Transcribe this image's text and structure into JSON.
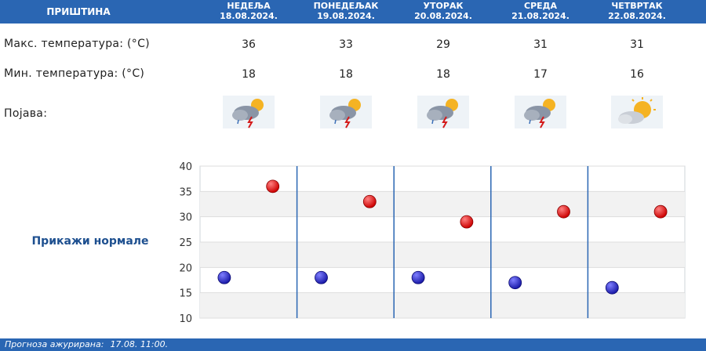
{
  "header": {
    "city": "ПРИШТИНА",
    "days": [
      {
        "name": "НЕДЕЉА",
        "date": "18.08.2024."
      },
      {
        "name": "ПОНЕДЕЉАК",
        "date": "19.08.2024."
      },
      {
        "name": "УТОРАК",
        "date": "20.08.2024."
      },
      {
        "name": "СРЕДА",
        "date": "21.08.2024."
      },
      {
        "name": "ЧЕТВРТАК",
        "date": "22.08.2024."
      }
    ]
  },
  "rows": {
    "max_label": "Макс. температура: (°C)",
    "min_label": "Мин. температура: (°C)",
    "phenomenon_label": "Појава:"
  },
  "max_temps": [
    "36",
    "33",
    "29",
    "31",
    "31"
  ],
  "min_temps": [
    "18",
    "18",
    "18",
    "17",
    "16"
  ],
  "icons": [
    "thunderstorm-icon",
    "thunderstorm-icon",
    "thunderstorm-icon",
    "thunderstorm-icon",
    "partly-cloudy-icon"
  ],
  "normals_link": "Прикажи нормале",
  "footer": {
    "label": "Прогноза ажурирана:",
    "value": "17.08. 11:00."
  },
  "colors": {
    "header": "#2a66b3",
    "max_dot": "#cc0000",
    "min_dot": "#1a1aa8",
    "link": "#1d4f8f"
  },
  "chart_data": {
    "type": "scatter",
    "categories": [
      "18.08.2024.",
      "19.08.2024.",
      "20.08.2024.",
      "21.08.2024.",
      "22.08.2024."
    ],
    "series": [
      {
        "values": [
          36,
          33,
          29,
          31,
          31
        ]
      },
      {
        "values": [
          18,
          18,
          18,
          17,
          16
        ]
      }
    ],
    "y_ticks": [
      "40",
      "35",
      "30",
      "25",
      "20",
      "15",
      "10"
    ],
    "ylim": [
      10,
      40
    ],
    "grid": true
  }
}
